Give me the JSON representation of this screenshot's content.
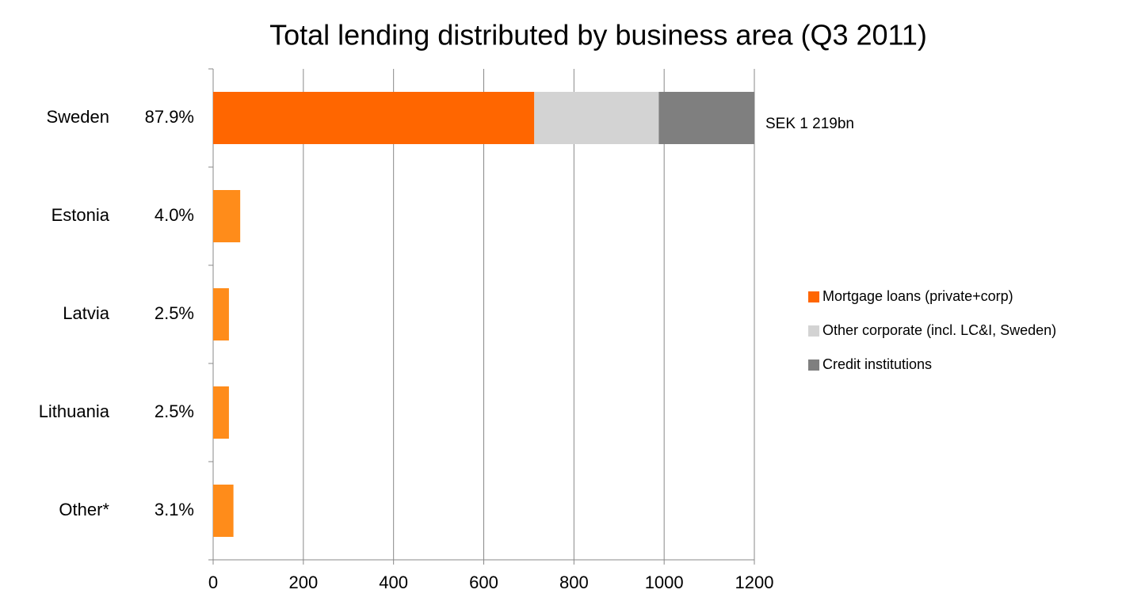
{
  "chart_data": {
    "type": "stacked-bar-horizontal",
    "title": "Total lending distributed by business area (Q3 2011)",
    "categories": [
      "Sweden",
      "Estonia",
      "Latvia",
      "Lithuania",
      "Other*"
    ],
    "category_shares": [
      87.9,
      4.0,
      2.5,
      2.5,
      3.1
    ],
    "category_share_labels": [
      "87.9%",
      "4.0%",
      "2.5%",
      "2.5%",
      "3.1%"
    ],
    "series": [
      {
        "name": "Mortgage loans (private+corp)",
        "color": "#ff6600",
        "point_colors": [
          "#ff6600",
          "#ff8c1a",
          "#ff8c1a",
          "#ff8c1a",
          "#ff8c1a"
        ],
        "values": [
          712,
          60,
          35,
          35,
          45
        ]
      },
      {
        "name": "Other corporate (incl. LC&I,  Sweden)",
        "color": "#d3d3d3",
        "values": [
          276,
          null,
          null,
          null,
          null
        ]
      },
      {
        "name": "Credit institutions",
        "color": "#7f7f7f",
        "values": [
          212,
          null,
          null,
          null,
          null
        ]
      }
    ],
    "annotation": "SEK 1 219bn",
    "xlim": [
      0,
      1200
    ],
    "xticks": [
      0,
      200,
      400,
      600,
      800,
      1000,
      1200
    ],
    "grid": true,
    "legend": "right"
  }
}
